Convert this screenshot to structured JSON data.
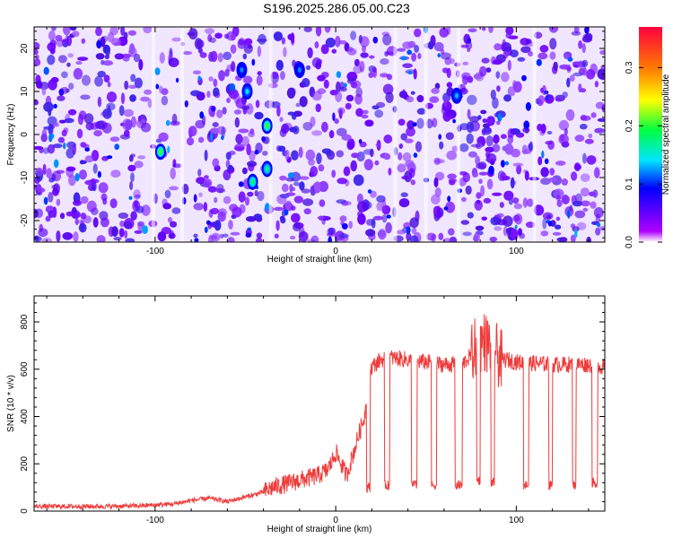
{
  "title": "S196.2025.286.05.00.C23",
  "chart_data": [
    {
      "type": "heatmap",
      "name": "spectrogram",
      "xlabel": "Height of straight line (km)",
      "ylabel": "Frequency (Hz)",
      "xlim": [
        -167,
        149
      ],
      "ylim": [
        -25,
        25
      ],
      "xticks": [
        -100,
        0,
        100
      ],
      "yticks": [
        -20,
        -10,
        0,
        10,
        20
      ],
      "colorbar": {
        "label": "Normalized spectral amplitude",
        "range": [
          0,
          0.37
        ],
        "ticks": [
          0.0,
          0.1,
          0.2,
          0.3
        ]
      },
      "hotspots": [
        {
          "x": -97,
          "y": -4,
          "amplitude": 0.2
        },
        {
          "x": -49,
          "y": 10,
          "amplitude": 0.14
        },
        {
          "x": -38,
          "y": 2,
          "amplitude": 0.2
        },
        {
          "x": -38,
          "y": -8,
          "amplitude": 0.17
        },
        {
          "x": -46,
          "y": -11,
          "amplitude": 0.18
        },
        {
          "x": 67,
          "y": 9,
          "amplitude": 0.13
        },
        {
          "x": -52,
          "y": 15,
          "amplitude": 0.12
        },
        {
          "x": -20,
          "y": 15,
          "amplitude": 0.12
        }
      ]
    },
    {
      "type": "line",
      "name": "snr",
      "xlabel": "Height of straight line (km)",
      "ylabel": "SNR (10 * v/v)",
      "xlim": [
        -167,
        149
      ],
      "ylim": [
        0,
        910
      ],
      "xticks": [
        -100,
        0,
        100
      ],
      "yticks": [
        0,
        200,
        400,
        600,
        800
      ],
      "color": "#ee3b3b",
      "series": [
        {
          "name": "SNR",
          "x": [
            -167,
            -150,
            -130,
            -110,
            -90,
            -80,
            -70,
            -60,
            -50,
            -40,
            -35,
            -30,
            -25,
            -20,
            -15,
            -10,
            -5,
            -2,
            0,
            3,
            6,
            10,
            13,
            16,
            18,
            20,
            25,
            30,
            40,
            50,
            60,
            70,
            75,
            78,
            82,
            85,
            88,
            90,
            92,
            95,
            100,
            110,
            120,
            130,
            140,
            149
          ],
          "y": [
            20,
            20,
            20,
            22,
            30,
            45,
            55,
            40,
            60,
            80,
            100,
            110,
            120,
            130,
            140,
            150,
            170,
            210,
            250,
            200,
            150,
            250,
            330,
            400,
            560,
            610,
            640,
            650,
            640,
            630,
            620,
            620,
            660,
            700,
            720,
            700,
            690,
            650,
            640,
            640,
            630,
            625,
            620,
            620,
            620,
            610
          ]
        }
      ],
      "dropouts": [
        {
          "x0": 17,
          "x1": 19,
          "level": 100
        },
        {
          "x0": 27,
          "x1": 30,
          "level": 110
        },
        {
          "x0": 42,
          "x1": 45,
          "level": 110
        },
        {
          "x0": 53,
          "x1": 56,
          "level": 110
        },
        {
          "x0": 66,
          "x1": 70,
          "level": 110
        },
        {
          "x0": 78,
          "x1": 80,
          "level": 130
        },
        {
          "x0": 86,
          "x1": 88,
          "level": 120
        },
        {
          "x0": 104,
          "x1": 107,
          "level": 110
        },
        {
          "x0": 118,
          "x1": 120,
          "level": 110
        },
        {
          "x0": 131,
          "x1": 133,
          "level": 110
        },
        {
          "x0": 142,
          "x1": 145,
          "level": 120
        }
      ]
    }
  ]
}
